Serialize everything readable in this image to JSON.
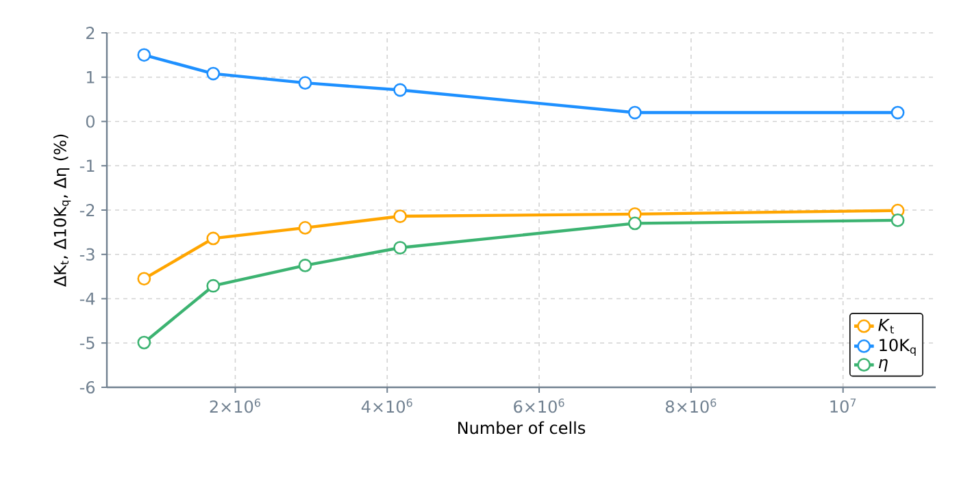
{
  "chart_data": {
    "type": "line",
    "xlabel": "Number of cells",
    "ylabel": "ΔK$_{t}$, Δ10K$_{q}$, Δη (%)",
    "x": [
      800000,
      1710000,
      2920000,
      4170000,
      7260000,
      10720000
    ],
    "series": [
      {
        "name": "*K*$_{t}$",
        "color": "#ffa500",
        "values": [
          -3.55,
          -2.64,
          -2.4,
          -2.14,
          -2.09,
          -2.01
        ]
      },
      {
        "name": "10K$_{q}$",
        "color": "#1e90ff",
        "values": [
          1.5,
          1.08,
          0.87,
          0.71,
          0.2,
          0.2
        ]
      },
      {
        "name": "*η*",
        "color": "#3cb371",
        "values": [
          -4.99,
          -3.71,
          -3.25,
          -2.85,
          -2.3,
          -2.23
        ]
      }
    ],
    "xlim": [
      310000,
      11220000
    ],
    "xticks": [
      {
        "value": 2000000,
        "label": "2×10$^{6}$"
      },
      {
        "value": 4000000,
        "label": "4×10$^{6}$"
      },
      {
        "value": 6000000,
        "label": "6×10$^{6}$"
      },
      {
        "value": 8000000,
        "label": "8×10$^{6}$"
      },
      {
        "value": 10000000,
        "label": "10$^{7}$"
      }
    ],
    "ylim": [
      -6,
      2
    ],
    "yticks": [
      -6,
      -5,
      -4,
      -3,
      -2,
      -1,
      0,
      1,
      2
    ],
    "grid": true,
    "legend": "bottom right",
    "marker": "circle",
    "line_style": "solid"
  }
}
